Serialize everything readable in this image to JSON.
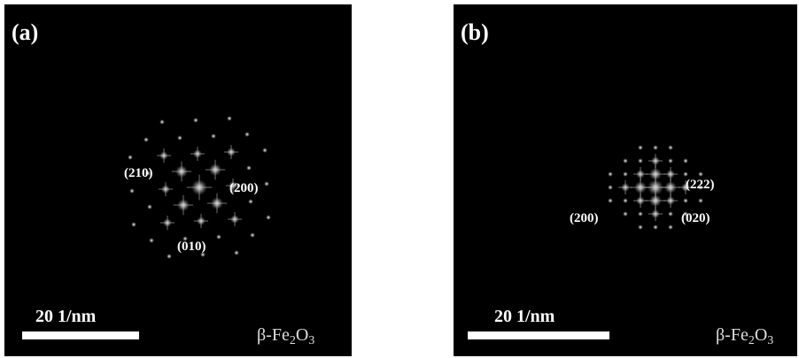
{
  "panels": [
    {
      "label": "(a)",
      "spot_labels": [
        "(210)",
        "(200)",
        "(010)"
      ],
      "scale_bar": "20 1/nm",
      "phase": {
        "base": "β-Fe",
        "sub1": "2",
        "mid": "O",
        "sub2": "3"
      }
    },
    {
      "label": "(b)",
      "spot_labels": [
        "(222)",
        "(200)",
        "(020)"
      ],
      "scale_bar": "20 1/nm",
      "phase": {
        "base": "β-Fe",
        "sub1": "2",
        "mid": "O",
        "sub2": "3"
      }
    }
  ]
}
